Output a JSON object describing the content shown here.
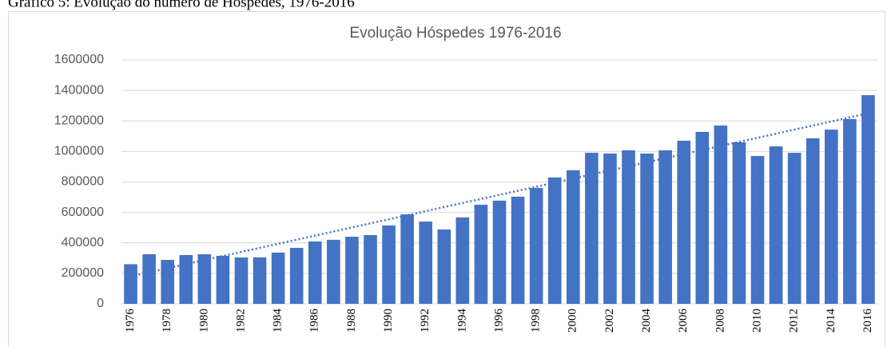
{
  "caption": "Gráfico 5: Evolução do número de Hóspedes, 1976-2016",
  "chart_data": {
    "type": "bar",
    "title": "Evolução Hóspedes 1976-2016",
    "categories": [
      "1976",
      null,
      "1978",
      null,
      "1980",
      null,
      "1982",
      null,
      "1984",
      null,
      "1986",
      null,
      "1988",
      null,
      "1990",
      null,
      "1992",
      null,
      "1994",
      null,
      "1996",
      null,
      "1998",
      null,
      "2000",
      null,
      "2002",
      null,
      "2004",
      null,
      "2006",
      null,
      "2008",
      null,
      "2010",
      null,
      "2012",
      null,
      "2014",
      null,
      "2016"
    ],
    "values": [
      260000,
      325000,
      288000,
      320000,
      325000,
      315000,
      304000,
      305000,
      336000,
      367000,
      409000,
      420000,
      440000,
      451000,
      514000,
      587000,
      540000,
      488000,
      567000,
      650000,
      677000,
      703000,
      760000,
      829000,
      876000,
      991000,
      986000,
      1007000,
      986000,
      1007000,
      1070000,
      1128000,
      1170000,
      1060000,
      970000,
      1033000,
      991000,
      1086000,
      1143000,
      1212000,
      1369000
    ],
    "color": "#4472c4",
    "trend": [
      180000,
      1250000
    ],
    "ylim": [
      0,
      1600000
    ],
    "yticks": [
      0,
      200000,
      400000,
      600000,
      800000,
      1000000,
      1200000,
      1400000,
      1600000
    ],
    "grid": true
  }
}
